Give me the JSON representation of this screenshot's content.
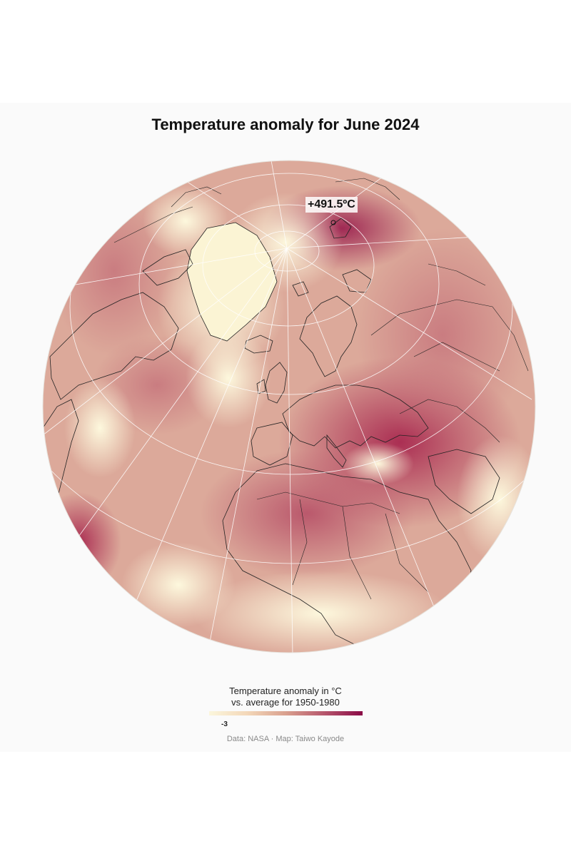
{
  "title": "Temperature anomaly for June 2024",
  "peak_label": "+491.5ºC",
  "legend": {
    "title_line1": "Temperature anomaly in °C",
    "title_line2": "vs. average for 1950-1980",
    "min_tick": "-3",
    "color_low": "#fbf6dc",
    "color_high": "#8a0a46"
  },
  "caption": "Data: NASA · Map: Taiwo Kayode",
  "colors": {
    "background": "#fafafa",
    "graticule": "#ffffff",
    "coastline": "#222222"
  }
}
